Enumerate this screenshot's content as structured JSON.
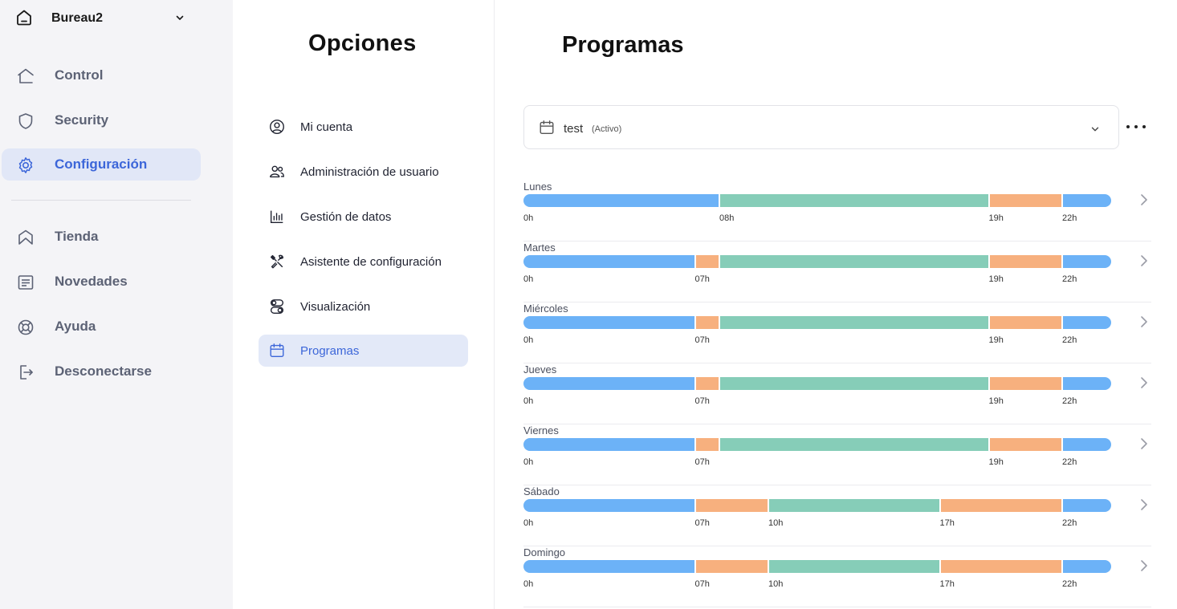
{
  "sidebar": {
    "home": {
      "name": "Bureau2",
      "icon": "home-icon"
    },
    "items": [
      {
        "label": "Control",
        "icon": "house-outline-icon",
        "active": false
      },
      {
        "label": "Security",
        "icon": "shield-icon",
        "active": false
      },
      {
        "label": "Configuración",
        "icon": "gear-icon",
        "active": true
      },
      {
        "label": "Tienda",
        "icon": "shop-icon",
        "active": false
      },
      {
        "label": "Novedades",
        "icon": "news-icon",
        "active": false
      },
      {
        "label": "Ayuda",
        "icon": "lifebuoy-icon",
        "active": false
      },
      {
        "label": "Desconectarse",
        "icon": "logout-icon",
        "active": false
      }
    ]
  },
  "options": {
    "title": "Opciones",
    "items": [
      {
        "label": "Mi cuenta",
        "icon": "user-circle-icon"
      },
      {
        "label": "Administración de usuario",
        "icon": "users-icon"
      },
      {
        "label": "Gestión de datos",
        "icon": "bar-chart-icon"
      },
      {
        "label": "Asistente de configuración",
        "icon": "tools-icon"
      },
      {
        "label": "Visualización",
        "icon": "toggles-icon"
      },
      {
        "label": "Programas",
        "icon": "calendar-icon",
        "active": true
      }
    ]
  },
  "main": {
    "title": "Programas",
    "program_select": {
      "value": "test",
      "state": "(Activo)"
    },
    "colors": {
      "blue": "#6cb2f7",
      "green": "#86cdb8",
      "orange": "#f7b07e"
    },
    "days": [
      {
        "name": "Lunes",
        "segments": [
          {
            "from": 0,
            "to": 8,
            "color": "blue"
          },
          {
            "from": 8,
            "to": 19,
            "color": "green"
          },
          {
            "from": 19,
            "to": 22,
            "color": "orange"
          },
          {
            "from": 22,
            "to": 24,
            "color": "blue"
          }
        ],
        "ticks": [
          {
            "hour": 0,
            "label": "0h"
          },
          {
            "hour": 8,
            "label": "08h"
          },
          {
            "hour": 19,
            "label": "19h"
          },
          {
            "hour": 22,
            "label": "22h"
          }
        ]
      },
      {
        "name": "Martes",
        "segments": [
          {
            "from": 0,
            "to": 7,
            "color": "blue"
          },
          {
            "from": 7,
            "to": 8,
            "color": "orange"
          },
          {
            "from": 8,
            "to": 19,
            "color": "green"
          },
          {
            "from": 19,
            "to": 22,
            "color": "orange"
          },
          {
            "from": 22,
            "to": 24,
            "color": "blue"
          }
        ],
        "ticks": [
          {
            "hour": 0,
            "label": "0h"
          },
          {
            "hour": 7,
            "label": "07h"
          },
          {
            "hour": 19,
            "label": "19h"
          },
          {
            "hour": 22,
            "label": "22h"
          }
        ]
      },
      {
        "name": "Miércoles",
        "segments": [
          {
            "from": 0,
            "to": 7,
            "color": "blue"
          },
          {
            "from": 7,
            "to": 8,
            "color": "orange"
          },
          {
            "from": 8,
            "to": 19,
            "color": "green"
          },
          {
            "from": 19,
            "to": 22,
            "color": "orange"
          },
          {
            "from": 22,
            "to": 24,
            "color": "blue"
          }
        ],
        "ticks": [
          {
            "hour": 0,
            "label": "0h"
          },
          {
            "hour": 7,
            "label": "07h"
          },
          {
            "hour": 19,
            "label": "19h"
          },
          {
            "hour": 22,
            "label": "22h"
          }
        ]
      },
      {
        "name": "Jueves",
        "segments": [
          {
            "from": 0,
            "to": 7,
            "color": "blue"
          },
          {
            "from": 7,
            "to": 8,
            "color": "orange"
          },
          {
            "from": 8,
            "to": 19,
            "color": "green"
          },
          {
            "from": 19,
            "to": 22,
            "color": "orange"
          },
          {
            "from": 22,
            "to": 24,
            "color": "blue"
          }
        ],
        "ticks": [
          {
            "hour": 0,
            "label": "0h"
          },
          {
            "hour": 7,
            "label": "07h"
          },
          {
            "hour": 19,
            "label": "19h"
          },
          {
            "hour": 22,
            "label": "22h"
          }
        ]
      },
      {
        "name": "Viernes",
        "segments": [
          {
            "from": 0,
            "to": 7,
            "color": "blue"
          },
          {
            "from": 7,
            "to": 8,
            "color": "orange"
          },
          {
            "from": 8,
            "to": 19,
            "color": "green"
          },
          {
            "from": 19,
            "to": 22,
            "color": "orange"
          },
          {
            "from": 22,
            "to": 24,
            "color": "blue"
          }
        ],
        "ticks": [
          {
            "hour": 0,
            "label": "0h"
          },
          {
            "hour": 7,
            "label": "07h"
          },
          {
            "hour": 19,
            "label": "19h"
          },
          {
            "hour": 22,
            "label": "22h"
          }
        ]
      },
      {
        "name": "Sábado",
        "segments": [
          {
            "from": 0,
            "to": 7,
            "color": "blue"
          },
          {
            "from": 7,
            "to": 10,
            "color": "orange"
          },
          {
            "from": 10,
            "to": 17,
            "color": "green"
          },
          {
            "from": 17,
            "to": 22,
            "color": "orange"
          },
          {
            "from": 22,
            "to": 24,
            "color": "blue"
          }
        ],
        "ticks": [
          {
            "hour": 0,
            "label": "0h"
          },
          {
            "hour": 7,
            "label": "07h"
          },
          {
            "hour": 10,
            "label": "10h"
          },
          {
            "hour": 17,
            "label": "17h"
          },
          {
            "hour": 22,
            "label": "22h"
          }
        ]
      },
      {
        "name": "Domingo",
        "segments": [
          {
            "from": 0,
            "to": 7,
            "color": "blue"
          },
          {
            "from": 7,
            "to": 10,
            "color": "orange"
          },
          {
            "from": 10,
            "to": 17,
            "color": "green"
          },
          {
            "from": 17,
            "to": 22,
            "color": "orange"
          },
          {
            "from": 22,
            "to": 24,
            "color": "blue"
          }
        ],
        "ticks": [
          {
            "hour": 0,
            "label": "0h"
          },
          {
            "hour": 7,
            "label": "07h"
          },
          {
            "hour": 10,
            "label": "10h"
          },
          {
            "hour": 17,
            "label": "17h"
          },
          {
            "hour": 22,
            "label": "22h"
          }
        ]
      }
    ]
  }
}
